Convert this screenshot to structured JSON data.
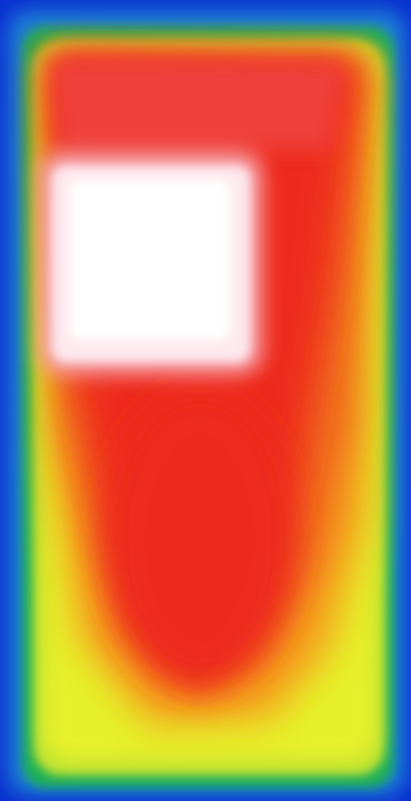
{
  "image": {
    "kind": "thermal-camera-view",
    "palette": [
      "#0a2fd0",
      "#1f7fd8",
      "#1fae5a",
      "#8fd43a",
      "#e6f02a",
      "#f7c21e",
      "#f07a1c",
      "#ee2a1f",
      "#f25a5a",
      "#fbe6ea",
      "#ffffff"
    ],
    "background_color": "#0a2fd0",
    "border_color": "#1fae5a",
    "hottest_color": "#ffffff",
    "body_color": "#ee2a1f"
  }
}
